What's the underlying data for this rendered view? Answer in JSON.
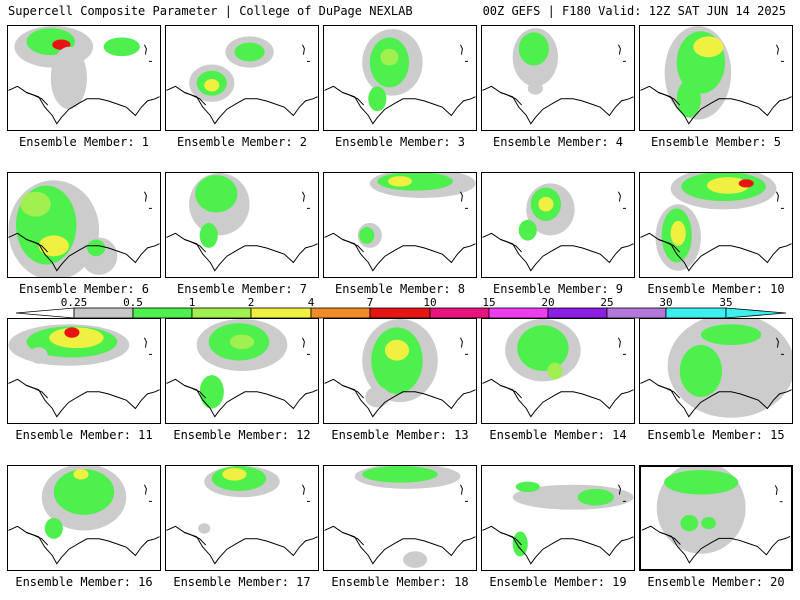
{
  "header": {
    "left": "Supercell Composite Parameter | College of DuPage NEXLAB",
    "right": "00Z GEFS | F180 Valid: 12Z SAT JUN 14 2025"
  },
  "colorbar": {
    "labels": [
      "0.25",
      "0.5",
      "1",
      "2",
      "4",
      "7",
      "10",
      "15",
      "20",
      "25",
      "30",
      "35"
    ],
    "colors": [
      "#ffffff",
      "#c8c8c8",
      "#4ef04e",
      "#a0f050",
      "#f0f040",
      "#f08c28",
      "#e81414",
      "#e8147c",
      "#f03cf0",
      "#8c1ee6",
      "#b478dc",
      "#3cf0f0"
    ]
  },
  "fill_colors": {
    "gray": "#cccccc",
    "green": "#4ef04e",
    "lime": "#a0f050",
    "yellow": "#f0f040",
    "red": "#e81414"
  },
  "members": [
    {
      "label": "Ensemble Member: 1"
    },
    {
      "label": "Ensemble Member: 2"
    },
    {
      "label": "Ensemble Member: 3"
    },
    {
      "label": "Ensemble Member: 4"
    },
    {
      "label": "Ensemble Member: 5"
    },
    {
      "label": "Ensemble Member: 6"
    },
    {
      "label": "Ensemble Member: 7"
    },
    {
      "label": "Ensemble Member: 8"
    },
    {
      "label": "Ensemble Member: 9"
    },
    {
      "label": "Ensemble Member: 10"
    },
    {
      "label": "Ensemble Member: 11"
    },
    {
      "label": "Ensemble Member: 12"
    },
    {
      "label": "Ensemble Member: 13"
    },
    {
      "label": "Ensemble Member: 14"
    },
    {
      "label": "Ensemble Member: 15"
    },
    {
      "label": "Ensemble Member: 16"
    },
    {
      "label": "Ensemble Member: 17"
    },
    {
      "label": "Ensemble Member: 18"
    },
    {
      "label": "Ensemble Member: 19"
    },
    {
      "label": "Ensemble Member: 20",
      "selected": true
    }
  ]
}
